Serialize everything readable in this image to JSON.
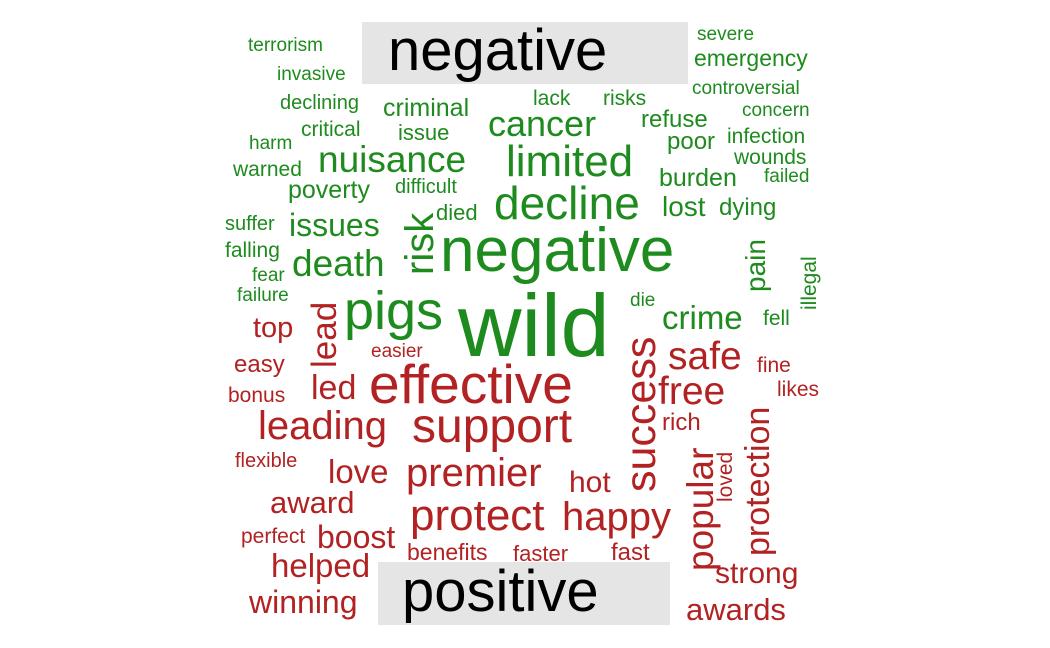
{
  "cloud": {
    "colors": {
      "negative": "#1e8b1e",
      "positive": "#b22222",
      "label_bg": "#e5e5e5",
      "label_text": "#000000"
    },
    "groups": {
      "negative": {
        "label": "negative",
        "words": [
          "terrorism",
          "invasive",
          "declining",
          "harm",
          "critical",
          "warned",
          "criminal",
          "issue",
          "lack",
          "risks",
          "cancer",
          "refuse",
          "poor",
          "severe",
          "emergency",
          "controversial",
          "concern",
          "infection",
          "wounds",
          "failed",
          "nuisance",
          "limited",
          "poverty",
          "difficult",
          "burden",
          "decline",
          "died",
          "lost",
          "dying",
          "suffer",
          "falling",
          "issues",
          "risk",
          "negative",
          "fear",
          "failure",
          "death",
          "pain",
          "illegal",
          "pigs",
          "wild",
          "die",
          "crime",
          "fell"
        ]
      },
      "positive": {
        "label": "positive",
        "words": [
          "top",
          "lead",
          "easier",
          "safe",
          "fine",
          "easy",
          "effective",
          "bonus",
          "led",
          "free",
          "likes",
          "success",
          "leading",
          "support",
          "rich",
          "protection",
          "flexible",
          "love",
          "premier",
          "loved",
          "hot",
          "popular",
          "award",
          "protect",
          "happy",
          "perfect",
          "boost",
          "benefits",
          "faster",
          "fast",
          "helped",
          "strong",
          "winning",
          "awards"
        ]
      }
    }
  }
}
